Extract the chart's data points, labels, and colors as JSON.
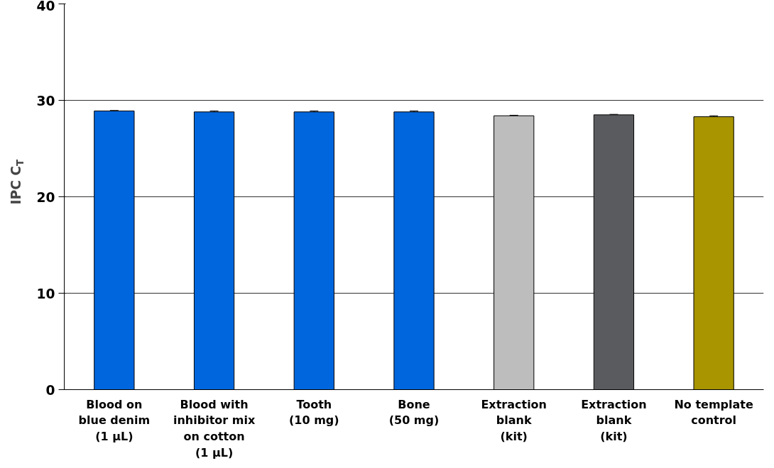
{
  "chart_data": {
    "type": "bar",
    "ylabel": "IPC C$_{T}$",
    "categories": [
      "Blood on\nblue denim\n(1 µL)",
      "Blood with\ninhibitor mix\non cotton\n(1 µL)",
      "Tooth\n(10 mg)",
      "Bone\n(50 mg)",
      "Extraction\nblank\n(kit)",
      "Extraction\nblank\n(kit)",
      "No template\ncontrol"
    ],
    "values": [
      28.9,
      28.8,
      28.8,
      28.8,
      28.4,
      28.5,
      28.3
    ],
    "errors": [
      0.05,
      0.1,
      0.1,
      0.1,
      0.05,
      0.05,
      0.1
    ],
    "colors": [
      "#0066dd",
      "#0066dd",
      "#0066dd",
      "#0066dd",
      "#bdbdbd",
      "#5a5b5e",
      "#a89500"
    ],
    "ylim": [
      0,
      40
    ],
    "yticks": [
      0,
      10,
      20,
      30,
      40
    ],
    "grid": "y"
  }
}
